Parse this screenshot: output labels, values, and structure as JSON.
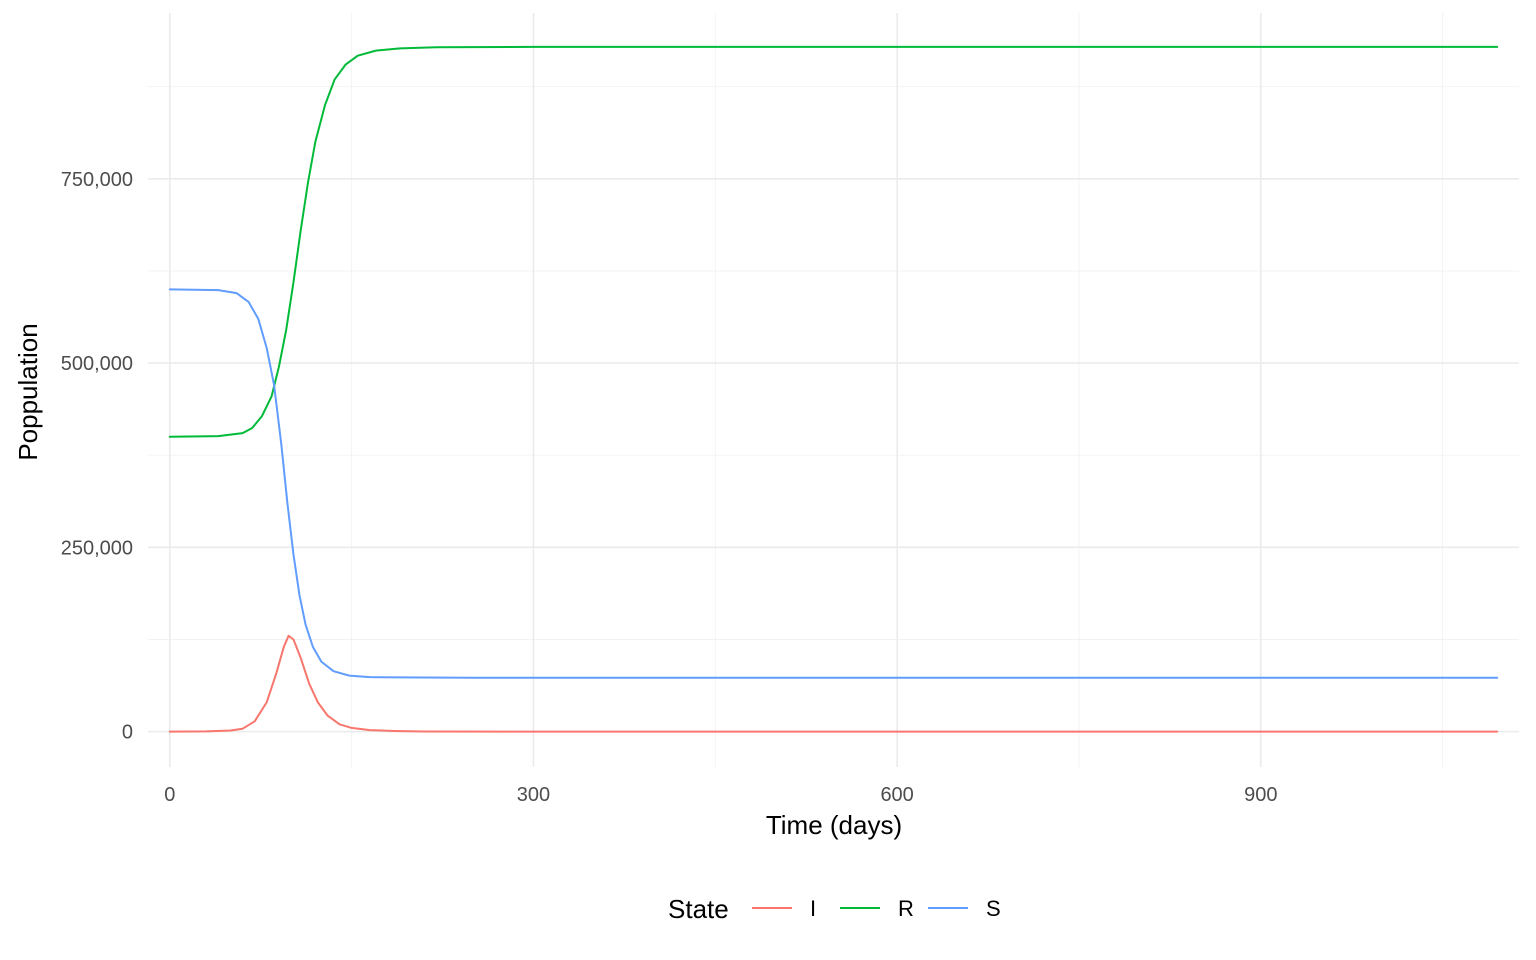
{
  "chart_data": {
    "type": "line",
    "xlabel": "Time (days)",
    "ylabel": "Poppulation",
    "xlim": [
      -18,
      1113
    ],
    "ylim": [
      -48000,
      975000
    ],
    "x_ticks": [
      0,
      300,
      600,
      900
    ],
    "x_tick_labels": [
      "0",
      "300",
      "600",
      "900"
    ],
    "x_minor_ticks": [
      150,
      450,
      750,
      1050
    ],
    "y_ticks": [
      0,
      250000,
      500000,
      750000
    ],
    "y_tick_labels": [
      "0",
      "250,000",
      "500,000",
      "750,000"
    ],
    "y_minor_ticks": [
      125000,
      375000,
      625000,
      875000
    ],
    "grid": true,
    "legend": {
      "title": "State",
      "position": "bottom"
    },
    "series": [
      {
        "name": "I",
        "color": "#F8766D",
        "points": [
          [
            0,
            0
          ],
          [
            30,
            300
          ],
          [
            50,
            1500
          ],
          [
            60,
            4000
          ],
          [
            70,
            14000
          ],
          [
            80,
            40000
          ],
          [
            88,
            80000
          ],
          [
            94,
            115000
          ],
          [
            98,
            130000
          ],
          [
            102,
            125000
          ],
          [
            108,
            100000
          ],
          [
            115,
            65000
          ],
          [
            122,
            40000
          ],
          [
            130,
            22000
          ],
          [
            140,
            10000
          ],
          [
            150,
            5000
          ],
          [
            165,
            2000
          ],
          [
            185,
            800
          ],
          [
            210,
            200
          ],
          [
            300,
            0
          ],
          [
            1095,
            0
          ]
        ]
      },
      {
        "name": "R",
        "color": "#00BA38",
        "points": [
          [
            0,
            400000
          ],
          [
            40,
            401000
          ],
          [
            60,
            405000
          ],
          [
            68,
            412000
          ],
          [
            76,
            428000
          ],
          [
            84,
            455000
          ],
          [
            90,
            495000
          ],
          [
            96,
            545000
          ],
          [
            102,
            610000
          ],
          [
            108,
            680000
          ],
          [
            114,
            745000
          ],
          [
            120,
            800000
          ],
          [
            128,
            850000
          ],
          [
            136,
            885000
          ],
          [
            145,
            905000
          ],
          [
            155,
            917000
          ],
          [
            170,
            924000
          ],
          [
            190,
            927000
          ],
          [
            220,
            928500
          ],
          [
            300,
            929000
          ],
          [
            1095,
            929000
          ]
        ]
      },
      {
        "name": "S",
        "color": "#619CFF",
        "points": [
          [
            0,
            600000
          ],
          [
            40,
            599000
          ],
          [
            55,
            595000
          ],
          [
            65,
            583000
          ],
          [
            73,
            560000
          ],
          [
            80,
            520000
          ],
          [
            86,
            470000
          ],
          [
            92,
            390000
          ],
          [
            97,
            310000
          ],
          [
            102,
            240000
          ],
          [
            107,
            185000
          ],
          [
            112,
            145000
          ],
          [
            118,
            115000
          ],
          [
            125,
            95000
          ],
          [
            135,
            82000
          ],
          [
            148,
            76000
          ],
          [
            165,
            74000
          ],
          [
            190,
            73500
          ],
          [
            250,
            73000
          ],
          [
            1095,
            73000
          ]
        ]
      }
    ]
  }
}
